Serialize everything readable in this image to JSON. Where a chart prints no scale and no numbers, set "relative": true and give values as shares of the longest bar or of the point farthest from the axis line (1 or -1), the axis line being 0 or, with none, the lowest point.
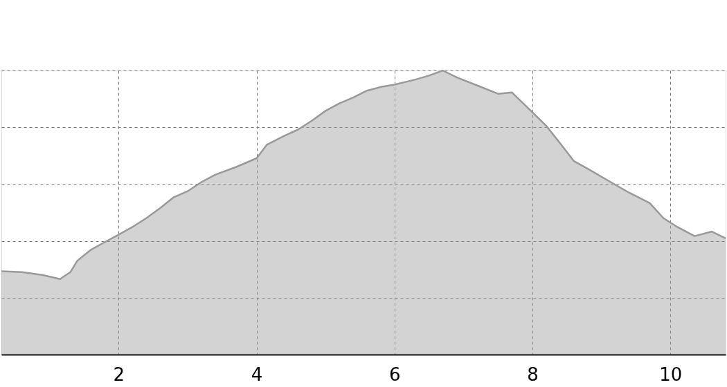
{
  "chart_data": {
    "type": "area",
    "relative": true,
    "grid": true,
    "line_style": "solid",
    "xlim": [
      0.3,
      10.8
    ],
    "xticks": [
      2,
      4,
      6,
      8,
      10
    ],
    "series": [
      {
        "color": "#999999",
        "x": [
          0.3,
          0.6,
          0.9,
          1.15,
          1.3,
          1.4,
          1.6,
          1.8,
          2.0,
          2.2,
          2.4,
          2.6,
          2.8,
          3.0,
          3.2,
          3.4,
          3.7,
          4.0,
          4.15,
          4.4,
          4.6,
          4.8,
          5.0,
          5.2,
          5.4,
          5.6,
          5.8,
          6.0,
          6.3,
          6.5,
          6.7,
          6.9,
          7.2,
          7.5,
          7.7,
          7.9,
          8.2,
          8.4,
          8.6,
          8.8,
          9.1,
          9.4,
          9.7,
          9.9,
          10.1,
          10.35,
          10.6,
          10.8
        ],
        "values": [
          0.293,
          0.29,
          0.28,
          0.266,
          0.29,
          0.33,
          0.369,
          0.396,
          0.422,
          0.449,
          0.48,
          0.515,
          0.554,
          0.575,
          0.607,
          0.633,
          0.66,
          0.691,
          0.739,
          0.77,
          0.792,
          0.823,
          0.858,
          0.884,
          0.905,
          0.929,
          0.942,
          0.95,
          0.968,
          0.982,
          1.0,
          0.976,
          0.947,
          0.918,
          0.923,
          0.876,
          0.805,
          0.744,
          0.681,
          0.654,
          0.612,
          0.57,
          0.533,
          0.48,
          0.449,
          0.417,
          0.433,
          0.409
        ]
      }
    ]
  }
}
